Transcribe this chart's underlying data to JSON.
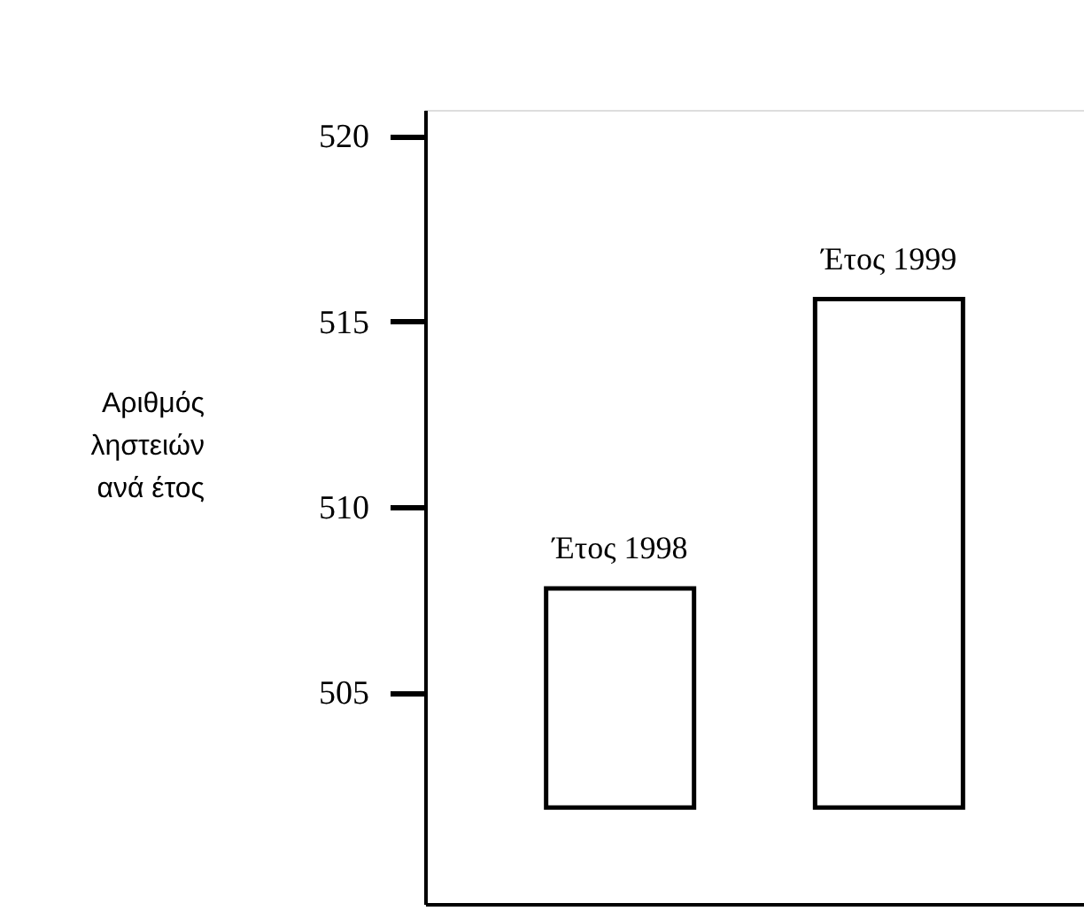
{
  "chart_data": {
    "type": "bar",
    "ylabel": "Αριθμός\nληστειών\nανά έτος",
    "categories": [
      "Έτος 1998",
      "Έτος 1999"
    ],
    "base": [
      501.9,
      501.9
    ],
    "values": [
      5.9,
      13.7
    ],
    "color": "#000000",
    "ylim": [
      499.3,
      520.7
    ],
    "yticks": [
      505,
      510,
      515,
      520
    ],
    "tick_labels": "y",
    "grid": false
  }
}
